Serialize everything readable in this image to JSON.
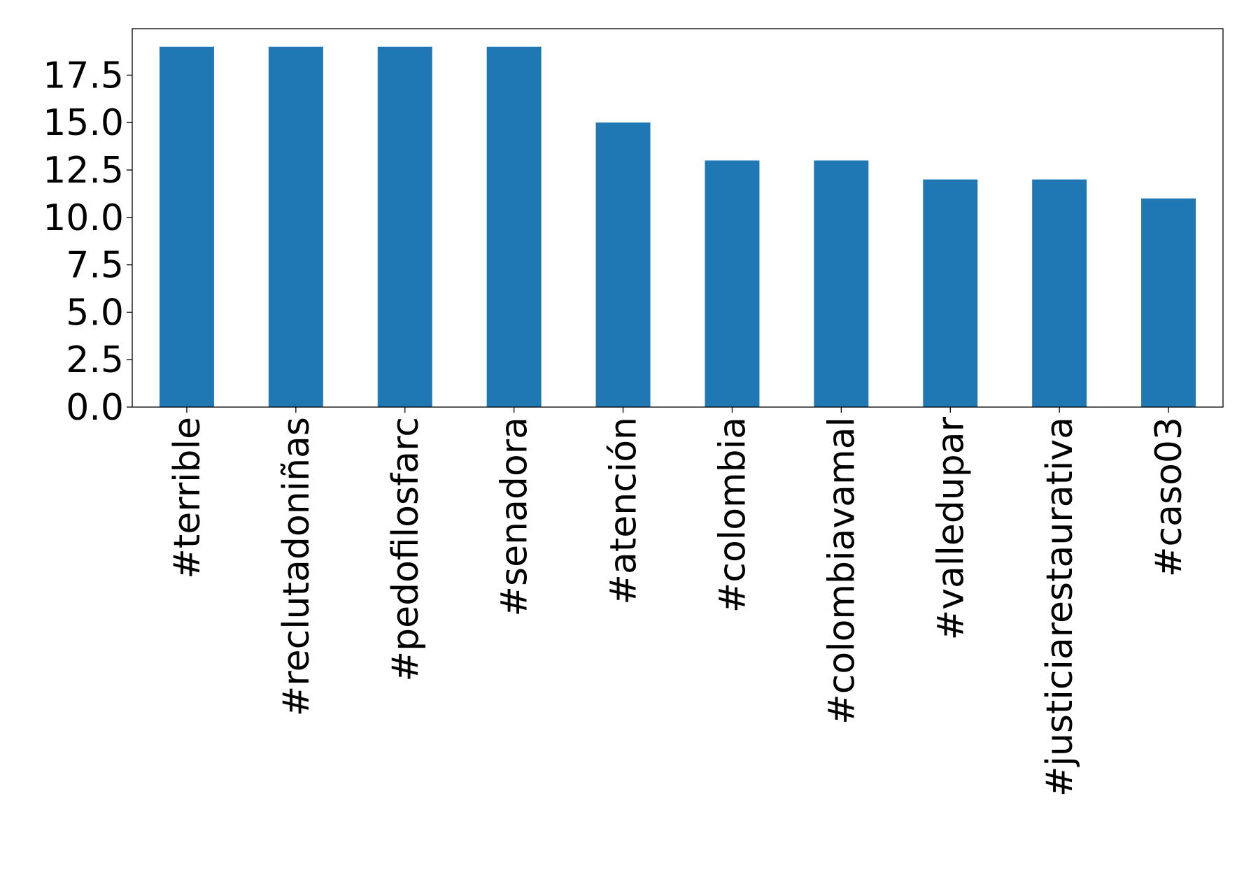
{
  "chart_data": {
    "type": "bar",
    "categories": [
      "#terrible",
      "#reclutadoniñas",
      "#pedofilosfarc",
      "#senadora",
      "#atención",
      "#colombia",
      "#colombiavamal",
      "#valledupar",
      "#justiciarestaurativa",
      "#caso03"
    ],
    "values": [
      19,
      19,
      19,
      19,
      15,
      13,
      13,
      12,
      12,
      11
    ],
    "color": "#1f77b4",
    "ylim": [
      0,
      19.95
    ],
    "yticks": [
      {
        "value": 0,
        "label": "0.0"
      },
      2.5,
      {
        "value": 5,
        "label": "5.0"
      },
      7.5,
      {
        "value": 10,
        "label": "10.0"
      },
      12.5,
      {
        "value": 15,
        "label": "15.0"
      },
      17.5
    ],
    "grid": false
  }
}
